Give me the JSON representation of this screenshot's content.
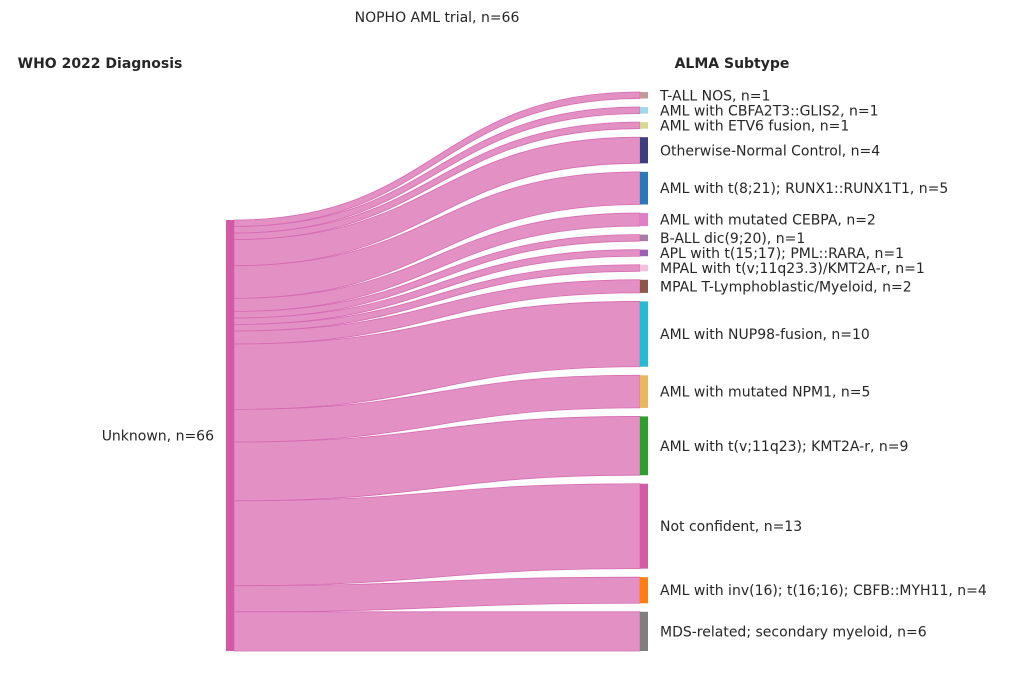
{
  "chart_data": {
    "type": "sankey",
    "title": "NOPHO AML trial, n=66",
    "left_header": "WHO 2022 Diagnosis",
    "right_header": "ALMA Subtype",
    "source": {
      "label": "Unknown, n=66",
      "value": 66,
      "color": "#d45aa8"
    },
    "flow_color": "#e390c4",
    "targets": [
      {
        "label": "T-ALL NOS, n=1",
        "value": 1,
        "color": "#c49a9a"
      },
      {
        "label": "AML with CBFA2T3::GLIS2, n=1",
        "value": 1,
        "color": "#9fd8ea"
      },
      {
        "label": "AML with ETV6 fusion, n=1",
        "value": 1,
        "color": "#d7d891"
      },
      {
        "label": "Otherwise-Normal Control, n=4",
        "value": 4,
        "color": "#3b3f7e"
      },
      {
        "label": "AML with t(8;21); RUNX1::RUNX1T1, n=5",
        "value": 5,
        "color": "#2a78b8"
      },
      {
        "label": "AML with mutated CEBPA, n=2",
        "value": 2,
        "color": "#e07fc9"
      },
      {
        "label": "B-ALL dic(9;20), n=1",
        "value": 1,
        "color": "#a67ba8"
      },
      {
        "label": "APL with t(15;17); PML::RARA, n=1",
        "value": 1,
        "color": "#9a5fb6"
      },
      {
        "label": "MPAL with t(v;11q23.3)/KMT2A-r, n=1",
        "value": 1,
        "color": "#f4c0dc"
      },
      {
        "label": "MPAL T-Lymphoblastic/Myeloid, n=2",
        "value": 2,
        "color": "#8c564b"
      },
      {
        "label": "AML with NUP98-fusion, n=10",
        "value": 10,
        "color": "#22bdd2"
      },
      {
        "label": "AML with mutated NPM1, n=5",
        "value": 5,
        "color": "#e8b85a"
      },
      {
        "label": "AML with t(v;11q23); KMT2A-r, n=9",
        "value": 9,
        "color": "#2ca02c"
      },
      {
        "label": "Not confident, n=13",
        "value": 13,
        "color": "#d45aa8"
      },
      {
        "label": "AML with inv(16); t(16;16); CBFB::MYH11, n=4",
        "value": 4,
        "color": "#ff7f0e"
      },
      {
        "label": "MDS-related; secondary myeloid, n=6",
        "value": 6,
        "color": "#7f7f7f"
      }
    ]
  }
}
